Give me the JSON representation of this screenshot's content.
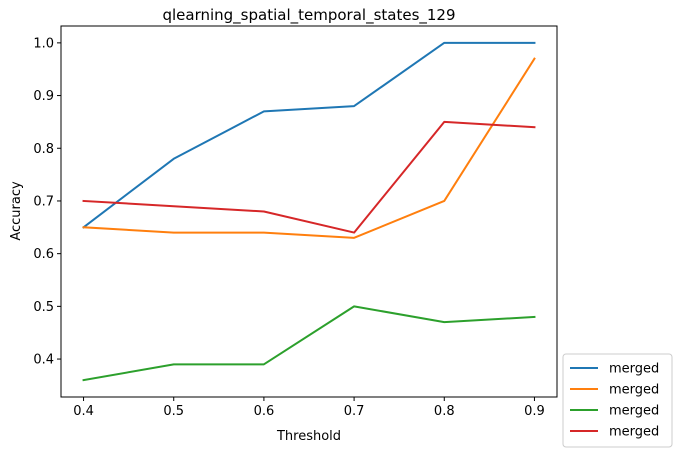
{
  "chart_data": {
    "type": "line",
    "title": "qlearning_spatial_temporal_states_129",
    "xlabel": "Threshold",
    "ylabel": "Accuracy",
    "x": [
      0.4,
      0.5,
      0.6,
      0.7,
      0.8,
      0.9
    ],
    "xlim": [
      0.375,
      0.925
    ],
    "ylim": [
      0.328,
      1.032
    ],
    "xticks": [
      "0.4",
      "0.5",
      "0.6",
      "0.7",
      "0.8",
      "0.9"
    ],
    "yticks": [
      "0.4",
      "0.5",
      "0.6",
      "0.7",
      "0.8",
      "0.9",
      "1.0"
    ],
    "grid": false,
    "legend_position": "outside-lower-right",
    "series": [
      {
        "name": "merged",
        "color": "#1f77b4",
        "values": [
          0.65,
          0.78,
          0.87,
          0.88,
          1.0,
          1.0
        ]
      },
      {
        "name": "merged",
        "color": "#ff7f0e",
        "values": [
          0.65,
          0.64,
          0.64,
          0.63,
          0.7,
          0.97
        ]
      },
      {
        "name": "merged",
        "color": "#2ca02c",
        "values": [
          0.36,
          0.39,
          0.39,
          0.5,
          0.47,
          0.48
        ]
      },
      {
        "name": "merged",
        "color": "#d62728",
        "values": [
          0.7,
          0.69,
          0.68,
          0.64,
          0.85,
          0.84
        ]
      }
    ]
  }
}
